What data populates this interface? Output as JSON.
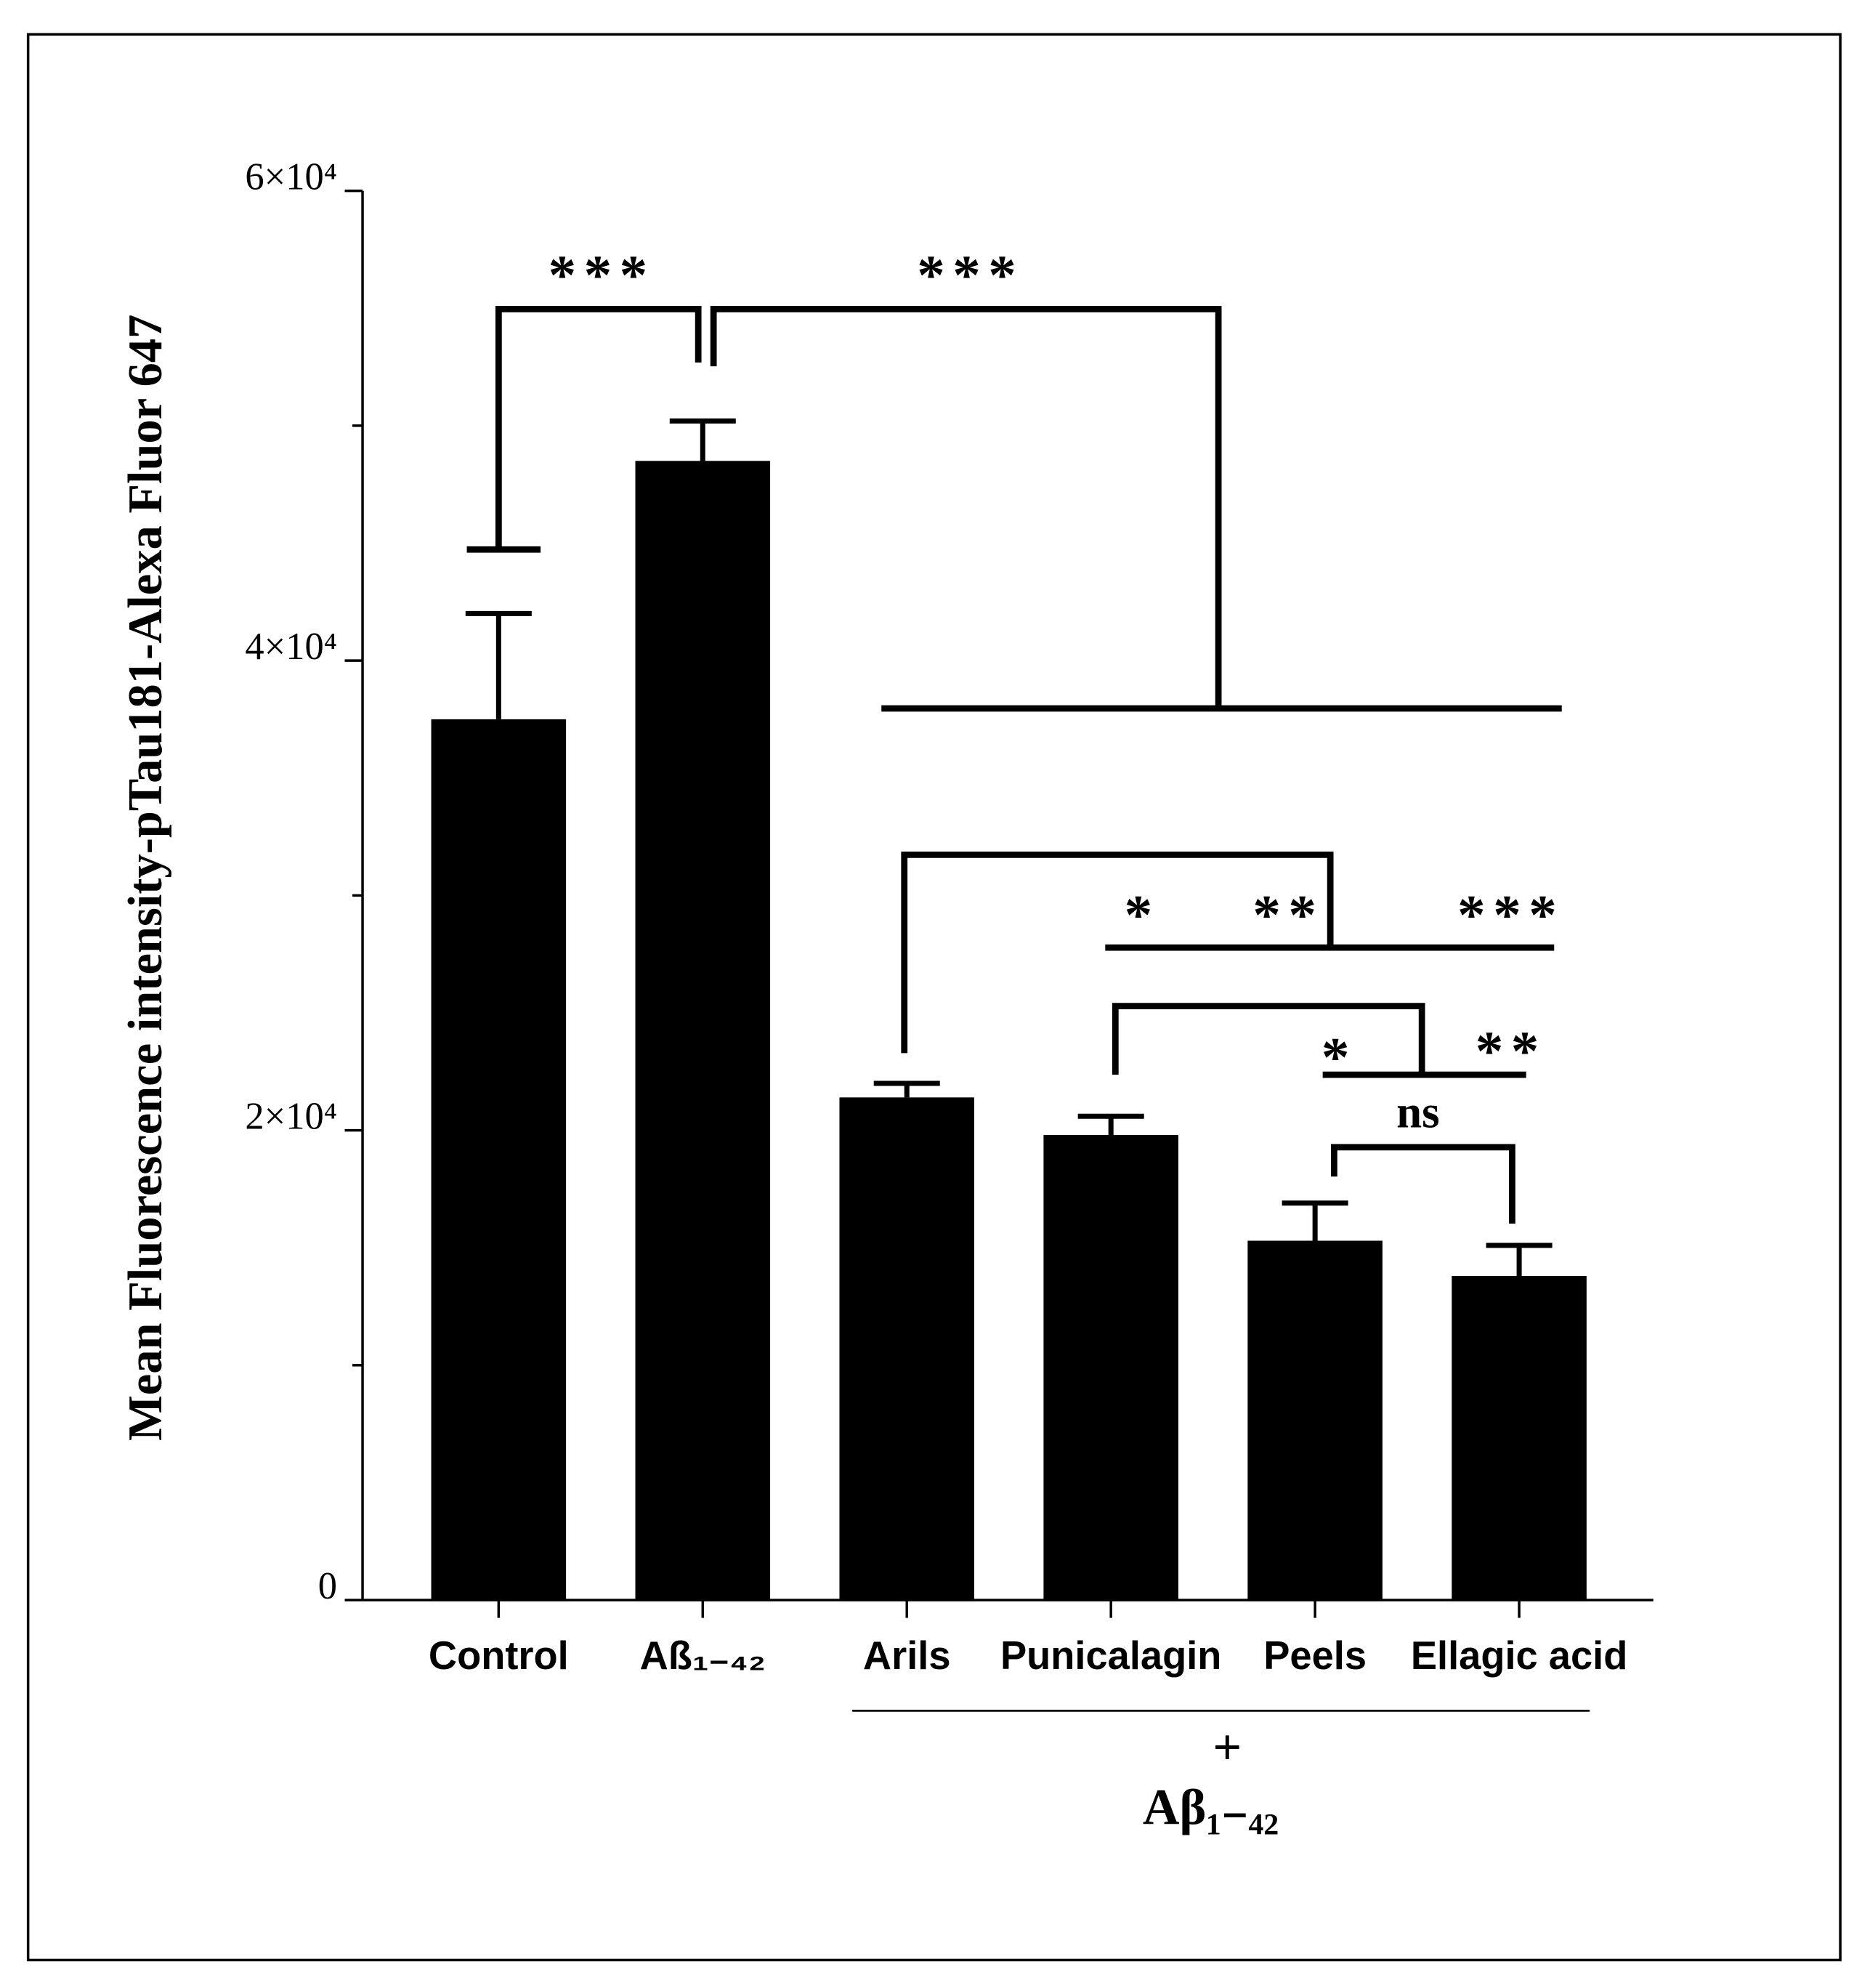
{
  "chart_data": {
    "type": "bar",
    "y_label": "Mean Fluorescence intensity-pTau181-Alexa Fluor 647",
    "categories": [
      "Control",
      "Aß₁₋₄₂",
      "Arils",
      "Punicalagin",
      "Peels",
      "Ellagic acid"
    ],
    "values": [
      37500,
      48500,
      21400,
      19800,
      15300,
      13800
    ],
    "errors": [
      4500,
      1700,
      600,
      800,
      1600,
      1300
    ],
    "color": "#000000",
    "ylim": [
      0,
      60000
    ],
    "yticks": [
      0,
      {
        "value": 20000,
        "label": "2×10⁴"
      },
      {
        "value": 40000,
        "label": "4×10⁴"
      },
      {
        "value": 60000,
        "label": "6×10⁴"
      }
    ],
    "minor_yticks": [
      10000,
      30000,
      50000
    ],
    "annotations": [
      "***",
      "***",
      "*",
      "**",
      "***",
      "*",
      "**",
      "ns"
    ],
    "group_label": [
      "+",
      "Aβ₁₋₄₂"
    ]
  }
}
